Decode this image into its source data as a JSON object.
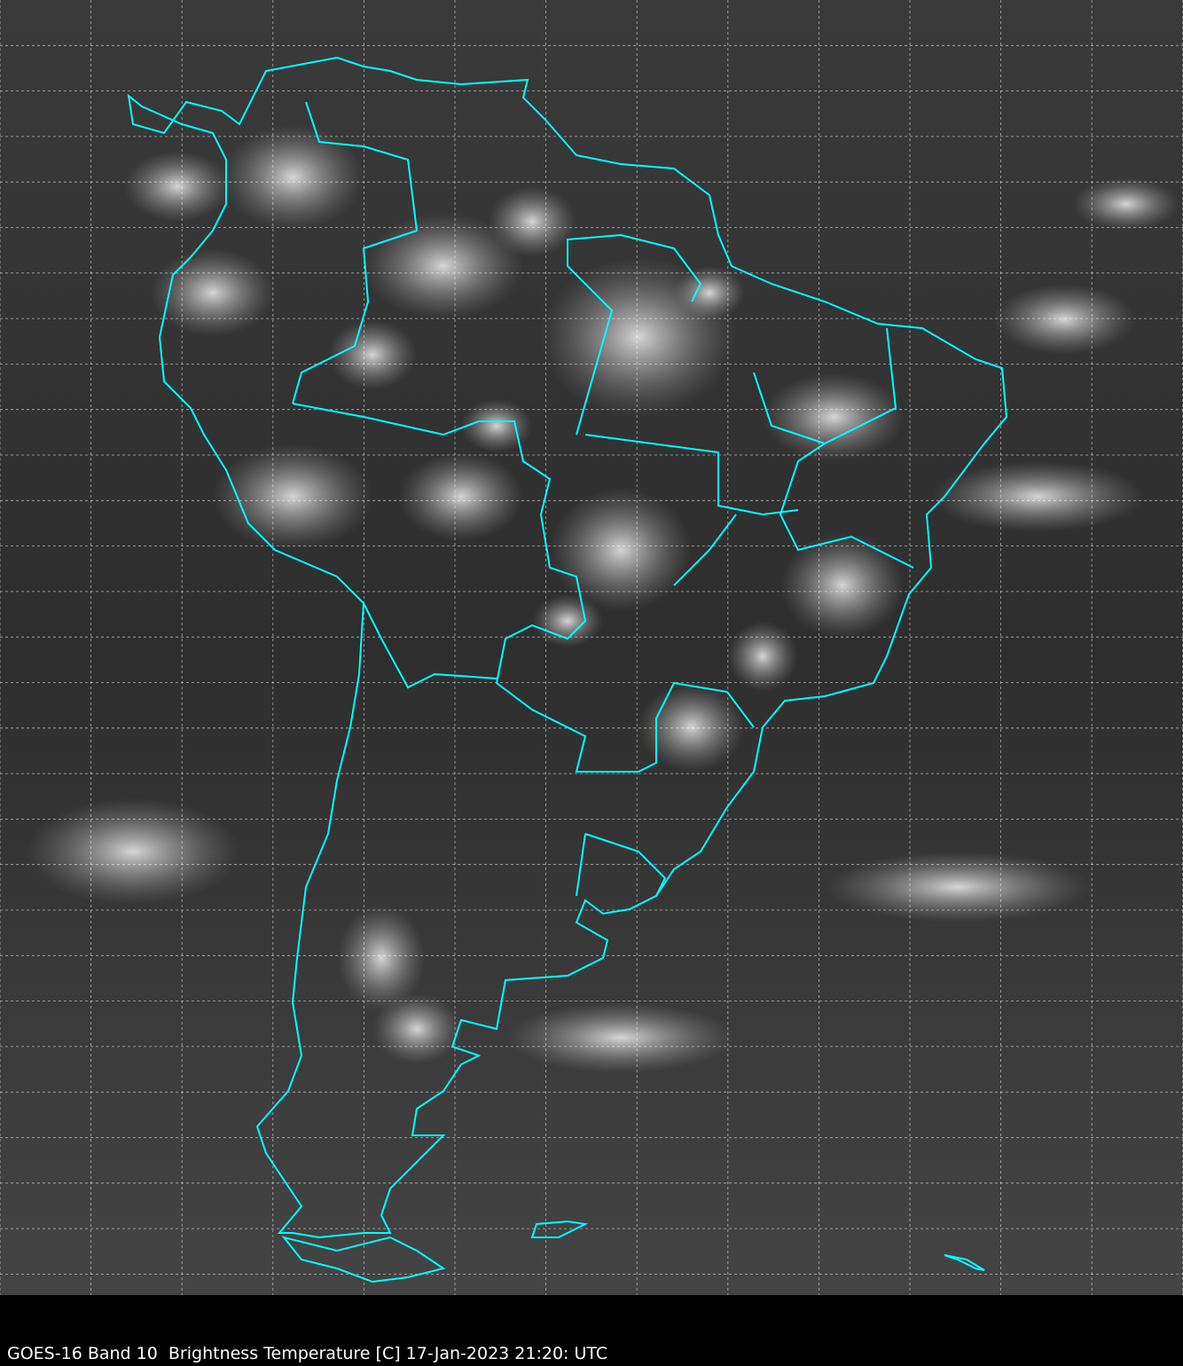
{
  "caption": "GOES-16 Band 10  Brightness Temperature [C] 17-Jan-2023 21:20: UTC",
  "map": {
    "satellite": "GOES-16",
    "band": "Band 10",
    "variable": "Brightness Temperature [C]",
    "colormap": "grayscale",
    "border_color": "#00ffff",
    "grid_color": "#ffffff",
    "grid_style": "dashed",
    "background": "#000000"
  }
}
